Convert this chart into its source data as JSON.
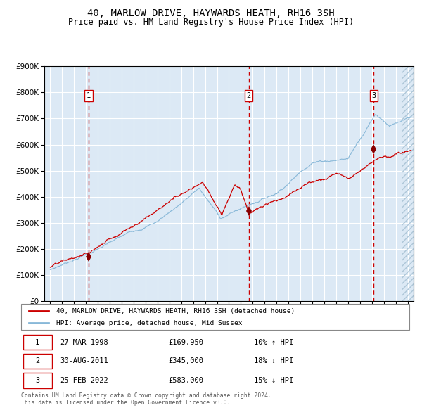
{
  "title": "40, MARLOW DRIVE, HAYWARDS HEATH, RH16 3SH",
  "subtitle": "Price paid vs. HM Land Registry's House Price Index (HPI)",
  "title_fontsize": 10,
  "subtitle_fontsize": 8.5,
  "background_color": "#dce9f5",
  "hatch_color": "#aec6d8",
  "grid_color": "#ffffff",
  "red_line_color": "#cc0000",
  "blue_line_color": "#88b8d8",
  "sale_marker_color": "#880000",
  "vline_color": "#cc0000",
  "sale1_date": 1998.23,
  "sale1_price": 169950,
  "sale2_date": 2011.66,
  "sale2_price": 345000,
  "sale3_date": 2022.15,
  "sale3_price": 583000,
  "ylim_min": 0,
  "ylim_max": 900000,
  "xlim_min": 1994.5,
  "xlim_max": 2025.5,
  "hatch_start": 2024.5,
  "ytick_step": 100000,
  "footer_text": "Contains HM Land Registry data © Crown copyright and database right 2024.\nThis data is licensed under the Open Government Licence v3.0.",
  "legend_line1": "40, MARLOW DRIVE, HAYWARDS HEATH, RH16 3SH (detached house)",
  "legend_line2": "HPI: Average price, detached house, Mid Sussex",
  "table_rows": [
    {
      "num": "1",
      "date": "27-MAR-1998",
      "price": "£169,950",
      "hpi": "10% ↑ HPI"
    },
    {
      "num": "2",
      "date": "30-AUG-2011",
      "price": "£345,000",
      "hpi": "18% ↓ HPI"
    },
    {
      "num": "3",
      "date": "25-FEB-2022",
      "price": "£583,000",
      "hpi": "15% ↓ HPI"
    }
  ]
}
